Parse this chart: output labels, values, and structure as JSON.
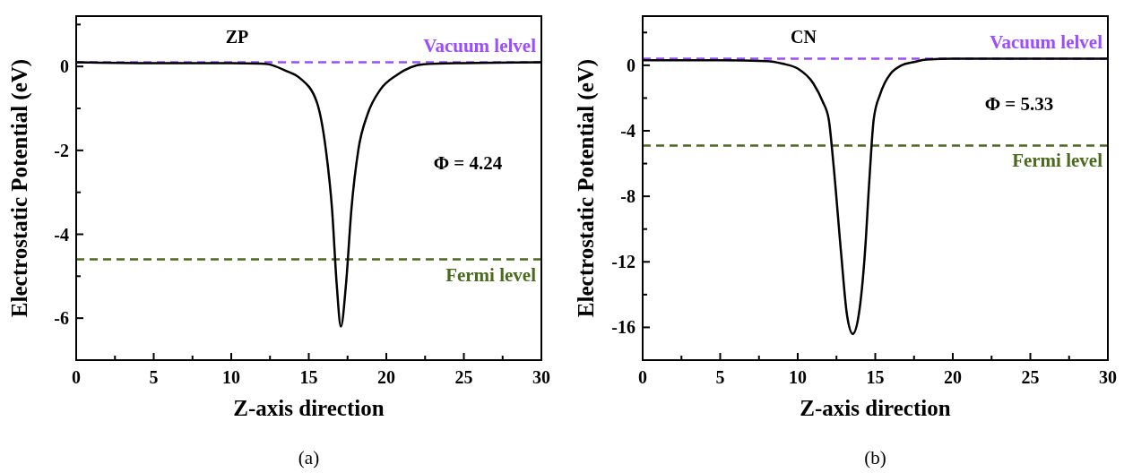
{
  "chart_data": [
    {
      "type": "line",
      "title": "ZP",
      "xlabel": "Z-axis direction",
      "ylabel": "Electrostatic Potential (eV)",
      "xlim": [
        0,
        30
      ],
      "ylim": [
        -7,
        1.2
      ],
      "xticks": [
        0,
        {
          "value": 2.5,
          "label": null
        },
        5,
        {
          "value": 7.5,
          "label": null
        },
        10,
        {
          "value": 12.5,
          "label": null
        },
        15,
        {
          "value": 17.5,
          "label": null
        },
        20,
        {
          "value": 22.5,
          "label": null
        },
        25,
        {
          "value": 27.5,
          "label": null
        },
        30
      ],
      "yticks": [
        {
          "value": 1,
          "label": null
        },
        0,
        {
          "value": -1,
          "label": null
        },
        -2,
        {
          "value": -3,
          "label": null
        },
        -4,
        {
          "value": -5,
          "label": null
        },
        -6
      ],
      "series": [
        {
          "color": "#000000",
          "x": [
            0,
            5,
            10,
            11.9,
            12.45,
            13.5,
            14.4,
            15.5,
            16.1,
            16.5,
            16.8,
            17.07,
            17.4,
            17.75,
            18.2,
            18.8,
            19.6,
            20.7,
            22.4,
            25,
            30
          ],
          "values": [
            0.1,
            0.08,
            0.08,
            0.07,
            0.05,
            -0.1,
            -0.27,
            -0.83,
            -1.98,
            -3.4,
            -5.19,
            -6.2,
            -5.19,
            -3.4,
            -1.98,
            -1.13,
            -0.56,
            -0.2,
            0.05,
            0.08,
            0.1
          ]
        }
      ],
      "ref_lines": [
        {
          "axis": "y",
          "value": 0.1,
          "label": "Vacuum lelvel",
          "color": "#9b4dff",
          "line_style": "dashed"
        },
        {
          "axis": "y",
          "value": -4.6,
          "label": "Fermi level",
          "color": "#4b6a1e",
          "line_style": "dashed"
        }
      ],
      "annotations": [
        "Φ = 4.24",
        "(a)"
      ],
      "line_style": "solid",
      "marker": "none"
    },
    {
      "type": "line",
      "title": "CN",
      "xlabel": "Z-axis direction",
      "ylabel": "Electrostatic Potential (eV)",
      "xlim": [
        0,
        30
      ],
      "ylim": [
        -18,
        3
      ],
      "xticks": [
        0,
        {
          "value": 2.5,
          "label": null
        },
        5,
        {
          "value": 7.5,
          "label": null
        },
        10,
        {
          "value": 12.5,
          "label": null
        },
        15,
        {
          "value": 17.5,
          "label": null
        },
        20,
        {
          "value": 22.5,
          "label": null
        },
        25,
        {
          "value": 27.5,
          "label": null
        },
        30
      ],
      "yticks": [
        {
          "value": 2,
          "label": null
        },
        0,
        {
          "value": -2,
          "label": null
        },
        -4,
        {
          "value": -6,
          "label": null
        },
        -8,
        {
          "value": -10,
          "label": null
        },
        -12,
        {
          "value": -14,
          "label": null
        },
        -16
      ],
      "series": [
        {
          "color": "#000000",
          "x": [
            0,
            5,
            8,
            9,
            10,
            11,
            11.6,
            12,
            12.3,
            12.8,
            13.17,
            13.55,
            13.94,
            14.33,
            14.62,
            14.9,
            15.3,
            15.6,
            16,
            16.7,
            17.5,
            18.3,
            20,
            30
          ],
          "values": [
            0.3,
            0.3,
            0.25,
            0.1,
            -0.2,
            -1.1,
            -2.2,
            -3.3,
            -6,
            -11.5,
            -15.2,
            -16.4,
            -15.2,
            -11.5,
            -7,
            -3.3,
            -1.8,
            -1.1,
            -0.5,
            0,
            0.2,
            0.35,
            0.4,
            0.4
          ]
        }
      ],
      "ref_lines": [
        {
          "axis": "y",
          "value": 0.4,
          "label": "Vacuum lelvel",
          "color": "#9b4dff",
          "line_style": "dashed"
        },
        {
          "axis": "y",
          "value": -4.9,
          "label": "Fermi level",
          "color": "#4b6a1e",
          "line_style": "dashed"
        }
      ],
      "annotations": [
        "Φ = 5.33",
        "(b)"
      ],
      "line_style": "solid",
      "marker": "none"
    }
  ]
}
